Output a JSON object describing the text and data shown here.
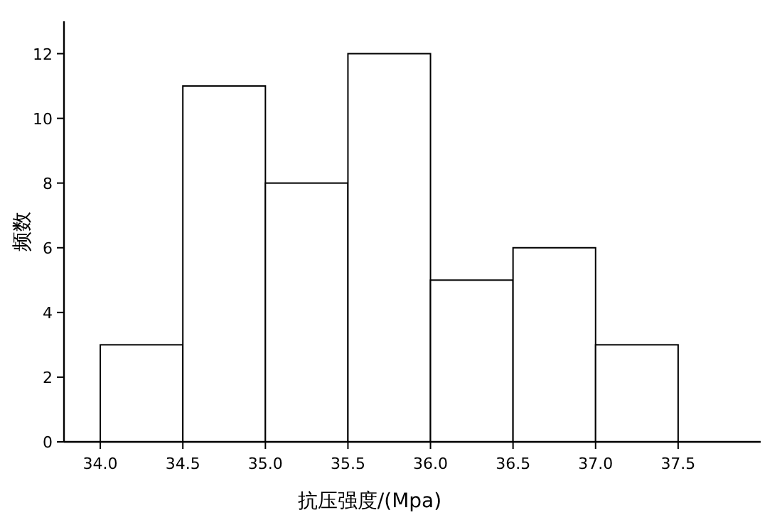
{
  "chart_data": {
    "type": "histogram",
    "xlabel": "抗压强度/(Mpa)",
    "ylabel": "频数",
    "bins": [
      34.0,
      34.5,
      35.0,
      35.5,
      36.0,
      36.5,
      37.0,
      37.5
    ],
    "values": [
      3,
      11,
      8,
      12,
      5,
      6,
      3
    ],
    "color": "#ffffff",
    "xlim": [
      33.78,
      38.0
    ],
    "ylim": [
      0,
      13
    ],
    "xticks": [
      {
        "value": 34.0,
        "label": "34.0"
      },
      {
        "value": 34.5,
        "label": "34.5"
      },
      {
        "value": 35.0,
        "label": "35.0"
      },
      {
        "value": 35.5,
        "label": "35.5"
      },
      {
        "value": 36.0,
        "label": "36.0"
      },
      {
        "value": 36.5,
        "label": "36.5"
      },
      {
        "value": 37.0,
        "label": "37.0"
      },
      {
        "value": 37.5,
        "label": "37.5"
      }
    ],
    "yticks": [
      0,
      2,
      4,
      6,
      8,
      10,
      12
    ],
    "grid": false
  }
}
